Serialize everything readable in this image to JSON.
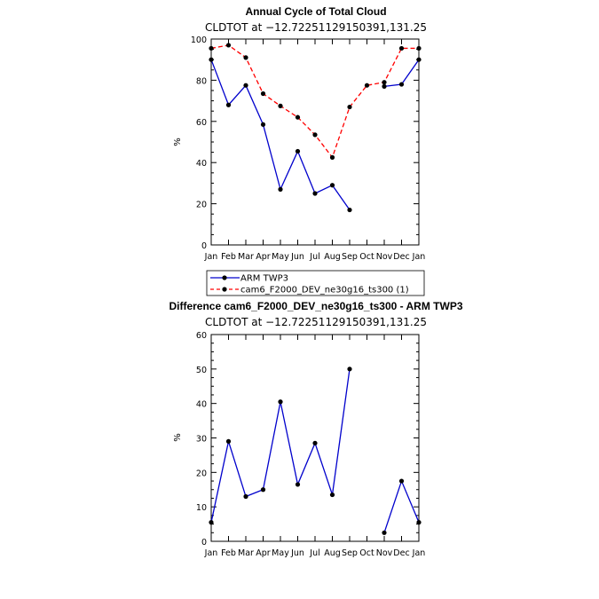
{
  "chart_data": [
    {
      "type": "line",
      "title": "Annual Cycle of Total Cloud",
      "subtitle": "CLDTOT at −12.72251129150391,131.25",
      "ylabel": "%",
      "ylim": [
        0,
        100
      ],
      "yticks": [
        0,
        20,
        40,
        60,
        80,
        100
      ],
      "categories": [
        "Jan",
        "Feb",
        "Mar",
        "Apr",
        "May",
        "Jun",
        "Jul",
        "Aug",
        "Sep",
        "Oct",
        "Nov",
        "Dec",
        "Jan"
      ],
      "series": [
        {
          "name": "ARM TWP3",
          "color": "#0000cc",
          "dash": "solid",
          "values": [
            90,
            68,
            77.5,
            58.5,
            27,
            45.5,
            25,
            29,
            17,
            null,
            77,
            78,
            90
          ]
        },
        {
          "name": "cam6_F2000_DEV_ne30g16_ts300 (1)",
          "color": "#ff0000",
          "dash": "dashed",
          "values": [
            95.5,
            97,
            91,
            73.5,
            67.5,
            62,
            53.5,
            42.5,
            67,
            77.5,
            79,
            95.5,
            95.5
          ]
        }
      ],
      "legend_placement": "below"
    },
    {
      "type": "line",
      "title": "Difference cam6_F2000_DEV_ne30g16_ts300 - ARM TWP3",
      "subtitle": "CLDTOT at −12.72251129150391,131.25",
      "ylabel": "%",
      "ylim": [
        0,
        60
      ],
      "yticks": [
        0,
        10,
        20,
        30,
        40,
        50,
        60
      ],
      "categories": [
        "Jan",
        "Feb",
        "Mar",
        "Apr",
        "May",
        "Jun",
        "Jul",
        "Aug",
        "Sep",
        "Oct",
        "Nov",
        "Dec",
        "Jan"
      ],
      "series": [
        {
          "color": "#0000cc",
          "dash": "solid",
          "values": [
            5.5,
            29,
            13,
            15,
            40.5,
            16.5,
            28.5,
            13.5,
            50,
            null,
            2.5,
            17.5,
            5.5
          ]
        }
      ]
    }
  ]
}
